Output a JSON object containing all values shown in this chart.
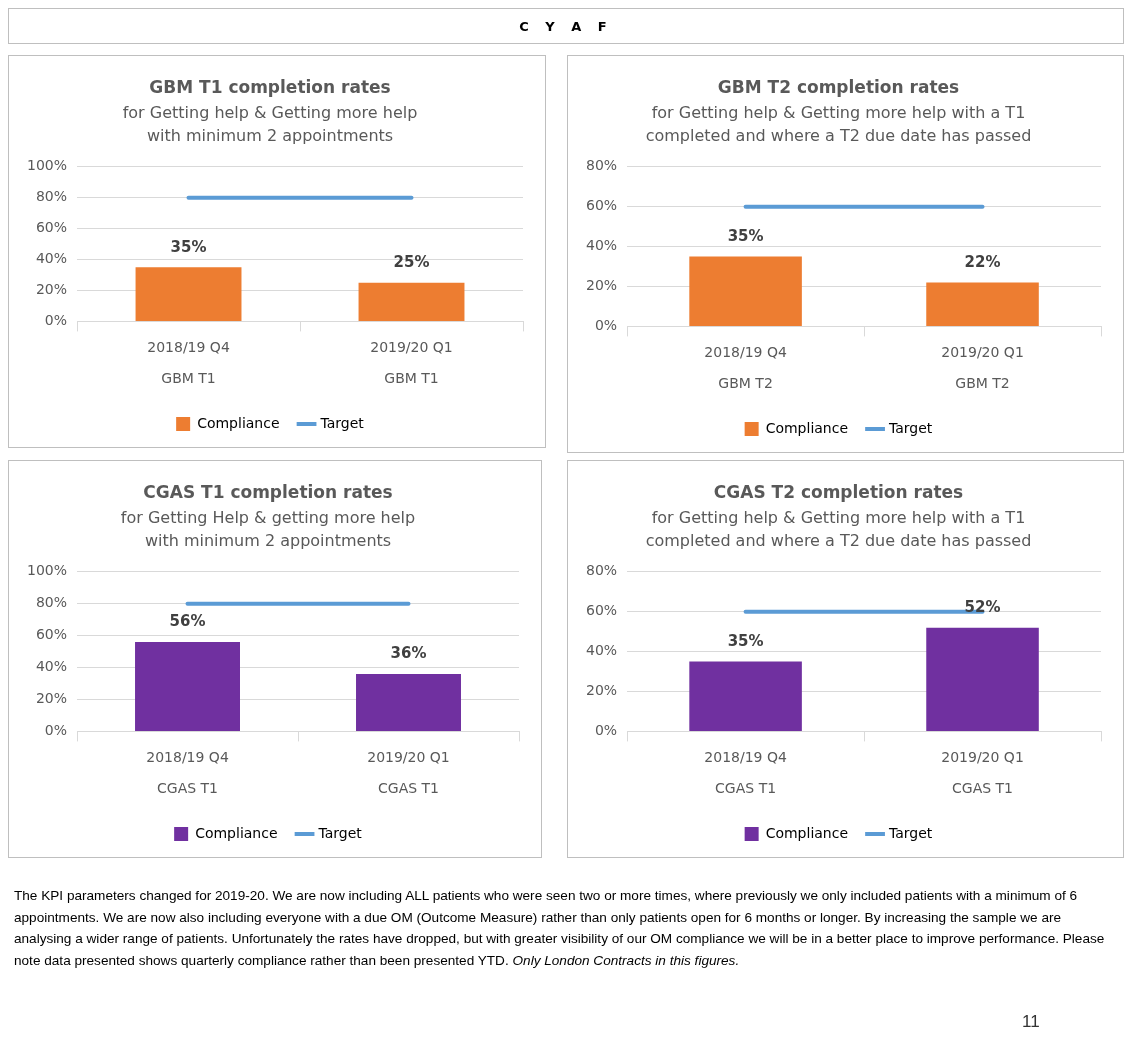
{
  "chart_data": [
    {
      "type": "other",
      "title": "C Y A F"
    },
    {
      "type": "bar",
      "title": "GBM T1 completion rates",
      "subtitle": "for Getting help & Getting more help\nwith minimum 2 appointments",
      "categories": [
        "2018/19 Q4\nGBM T1",
        "2019/20 Q1\nGBM T1"
      ],
      "series": [
        {
          "name": "Compliance",
          "type": "bar",
          "color": "#ed7d31",
          "values": [
            35,
            25
          ],
          "value_labels": [
            "35%",
            "25%"
          ]
        },
        {
          "name": "Target",
          "type": "line",
          "color": "#5b9bd5",
          "values": [
            80,
            80
          ]
        }
      ],
      "ylim": [
        0,
        100
      ],
      "yticks": [
        {
          "value": 0,
          "label": "0%"
        },
        {
          "value": 20,
          "label": "20%"
        },
        {
          "value": 40,
          "label": "40%"
        },
        {
          "value": 60,
          "label": "60%"
        },
        {
          "value": 80,
          "label": "80%"
        },
        {
          "value": 100,
          "label": "100%"
        }
      ],
      "grid": "y",
      "legend": "bottom",
      "marker": "none"
    },
    {
      "type": "bar",
      "title": "GBM T2 completion rates",
      "subtitle": "for Getting help & Getting more help with a T1\ncompleted and where a T2 due date has passed",
      "categories": [
        "2018/19 Q4\nGBM T2",
        "2019/20 Q1\nGBM T2"
      ],
      "series": [
        {
          "name": "Compliance",
          "type": "bar",
          "color": "#ed7d31",
          "values": [
            35,
            22
          ],
          "value_labels": [
            "35%",
            "22%"
          ]
        },
        {
          "name": "Target",
          "type": "line",
          "color": "#5b9bd5",
          "values": [
            60,
            60
          ]
        }
      ],
      "ylim": [
        0,
        80
      ],
      "yticks": [
        {
          "value": 0,
          "label": "0%"
        },
        {
          "value": 20,
          "label": "20%"
        },
        {
          "value": 40,
          "label": "40%"
        },
        {
          "value": 60,
          "label": "60%"
        },
        {
          "value": 80,
          "label": "80%"
        }
      ],
      "grid": "y",
      "legend": "bottom",
      "marker": "none"
    },
    {
      "type": "bar",
      "title": "CGAS T1 completion rates",
      "subtitle": "for Getting Help & getting more help\nwith minimum 2 appointments",
      "categories": [
        "2018/19 Q4\nCGAS T1",
        "2019/20 Q1\nCGAS T1"
      ],
      "series": [
        {
          "name": "Compliance",
          "type": "bar",
          "color": "#7030a0",
          "values": [
            56,
            36
          ],
          "value_labels": [
            "56%",
            "36%"
          ]
        },
        {
          "name": "Target",
          "type": "line",
          "color": "#5b9bd5",
          "values": [
            80,
            80
          ]
        }
      ],
      "ylim": [
        0,
        100
      ],
      "yticks": [
        {
          "value": 0,
          "label": "0%"
        },
        {
          "value": 20,
          "label": "20%"
        },
        {
          "value": 40,
          "label": "40%"
        },
        {
          "value": 60,
          "label": "60%"
        },
        {
          "value": 80,
          "label": "80%"
        },
        {
          "value": 100,
          "label": "100%"
        }
      ],
      "grid": "y",
      "legend": "bottom",
      "marker": "none"
    },
    {
      "type": "bar",
      "title": "CGAS T2 completion rates",
      "subtitle": "for Getting help & Getting more help with a T1\ncompleted and where a T2 due date has passed",
      "categories": [
        "2018/19 Q4\nCGAS T1",
        "2019/20 Q1\nCGAS T1"
      ],
      "series": [
        {
          "name": "Compliance",
          "type": "bar",
          "color": "#7030a0",
          "values": [
            35,
            52
          ],
          "value_labels": [
            "35%",
            "52%"
          ]
        },
        {
          "name": "Target",
          "type": "line",
          "color": "#5b9bd5",
          "values": [
            60,
            60
          ]
        }
      ],
      "ylim": [
        0,
        80
      ],
      "yticks": [
        {
          "value": 0,
          "label": "0%"
        },
        {
          "value": 20,
          "label": "20%"
        },
        {
          "value": 40,
          "label": "40%"
        },
        {
          "value": 60,
          "label": "60%"
        },
        {
          "value": 80,
          "label": "80%"
        }
      ],
      "grid": "y",
      "legend": "bottom",
      "marker": "none"
    },
    {
      "type": "other",
      "annotations": [
        "The KPI parameters changed for  2019-20.  We are now including ALL patients who were seen two or more times, where previously we only included patients with a minimum of 6 appointments. We are now also including everyone with a due OM (Outcome Measure) rather than only patients open for 6 months or longer. By increasing the sample we are analysing a wider range of patients. Unfortunately the rates have dropped, but with greater visibility of our OM compliance we will be in a better place to improve performance. Please note data presented shows quarterly  compliance rather than been presented YTD.",
        "Only London Contracts in this figures.",
        "11"
      ]
    }
  ]
}
